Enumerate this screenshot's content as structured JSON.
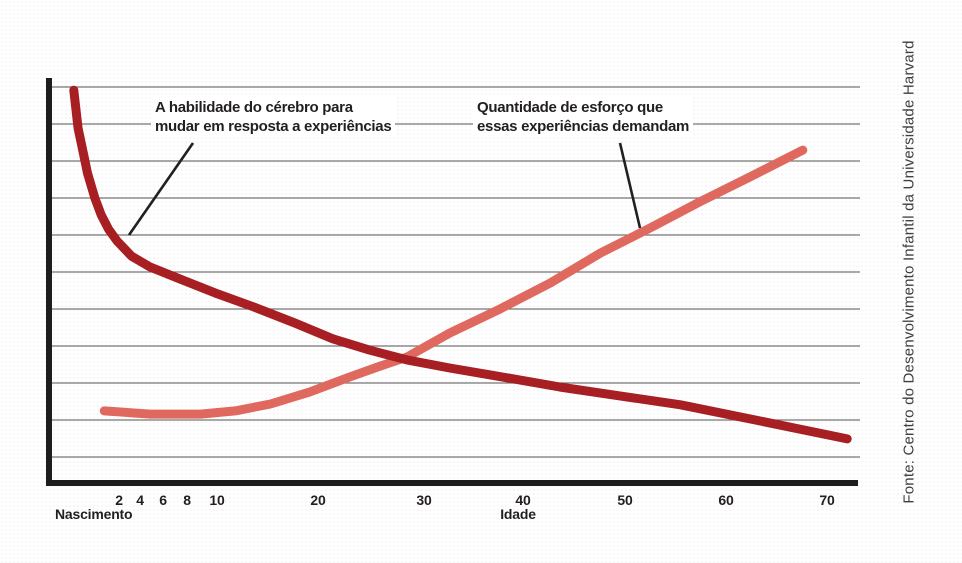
{
  "source": "Fonte: Centro do Desenvolvimento Infantil da Universidade Harvard",
  "annotations": {
    "ability_label": "A habilidade do cérebro para\nmudar em resposta a experiências",
    "effort_label": "Quantidade de esforço que\nessas experiências demandam"
  },
  "colors": {
    "ability": "#a71e23",
    "effort": "#e0695f",
    "grid": "#767676",
    "axis": "#1d1d1b",
    "text": "#231f20",
    "source_text": "#3f3f3f"
  },
  "chart_data": {
    "type": "line",
    "title": "",
    "xlabel": "Idade",
    "ylabel": "",
    "x_origin_label": "Nascimento",
    "x_ticks": [
      2,
      4,
      6,
      8,
      10,
      20,
      30,
      40,
      50,
      60,
      70
    ],
    "x_range_years": [
      -2.3,
      72
    ],
    "y_relative_range": [
      0,
      100
    ],
    "y_tick_labels": [],
    "grid": "horizontal-only",
    "legend_position": "inline-annotations",
    "series": [
      {
        "id": "ability",
        "name": "A habilidade do cérebro para mudar em resposta a experiências",
        "color": "#a71e23",
        "trend": "decreasing",
        "points": [
          [
            -2.3,
            97.0
          ],
          [
            -1.9,
            87.7
          ],
          [
            -1.4,
            81.5
          ],
          [
            -1.0,
            76.5
          ],
          [
            -0.3,
            70.4
          ],
          [
            0.3,
            66.2
          ],
          [
            1.0,
            62.7
          ],
          [
            1.8,
            59.8
          ],
          [
            3.2,
            56.0
          ],
          [
            4.9,
            53.3
          ],
          [
            7.4,
            50.4
          ],
          [
            9.9,
            46.9
          ],
          [
            13.6,
            43.5
          ],
          [
            17.7,
            39.5
          ],
          [
            21.4,
            35.6
          ],
          [
            24.9,
            32.8
          ],
          [
            28.4,
            30.4
          ],
          [
            32.6,
            28.4
          ],
          [
            36.7,
            26.7
          ],
          [
            43.6,
            23.7
          ],
          [
            49.5,
            21.5
          ],
          [
            55.5,
            19.3
          ],
          [
            63.4,
            15.3
          ],
          [
            72.0,
            10.9
          ]
        ]
      },
      {
        "id": "effort",
        "name": "Quantidade de esforço que essas experiências demandam",
        "color": "#e0695f",
        "trend": "increasing",
        "points": [
          [
            0.6,
            17.8
          ],
          [
            4.9,
            17.0
          ],
          [
            8.9,
            17.0
          ],
          [
            11.8,
            17.8
          ],
          [
            15.3,
            19.5
          ],
          [
            19.2,
            22.5
          ],
          [
            23.0,
            26.2
          ],
          [
            25.9,
            28.9
          ],
          [
            28.4,
            31.1
          ],
          [
            32.6,
            37.0
          ],
          [
            37.7,
            43.0
          ],
          [
            42.7,
            49.4
          ],
          [
            47.6,
            56.8
          ],
          [
            52.5,
            63.0
          ],
          [
            57.4,
            69.4
          ],
          [
            62.4,
            75.6
          ],
          [
            67.6,
            82.2
          ]
        ]
      }
    ]
  }
}
